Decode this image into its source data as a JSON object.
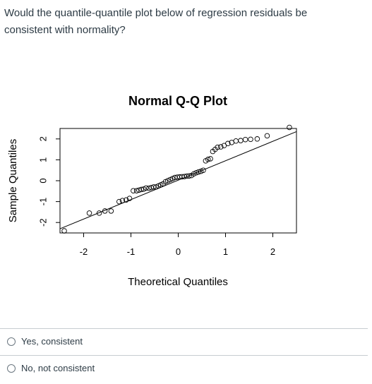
{
  "question": {
    "text": "Would the quantile-quantile plot below of regression residuals be consistent with normality?"
  },
  "chart_data": {
    "type": "scatter",
    "title": "Normal Q-Q Plot",
    "xlabel": "Theoretical Quantiles",
    "ylabel": "Sample Quantiles",
    "xlim": [
      -2.5,
      2.5
    ],
    "ylim": [
      -2.5,
      2.5
    ],
    "x_ticks": [
      -2,
      -1,
      0,
      1,
      2
    ],
    "x_tick_labels": [
      "-2",
      "-1",
      "0",
      "1",
      "2"
    ],
    "y_ticks": [
      -2,
      -1,
      0,
      1,
      2
    ],
    "y_tick_labels": [
      "-2",
      "-1",
      "0",
      "1",
      "2"
    ],
    "grid": false,
    "reference_line": {
      "x": [
        -2.5,
        2.5
      ],
      "y": [
        -2.3,
        2.35
      ]
    },
    "x": [
      -2.41,
      -1.88,
      -1.67,
      -1.55,
      -1.42,
      -1.25,
      -1.18,
      -1.1,
      -1.03,
      -0.95,
      -0.88,
      -0.83,
      -0.78,
      -0.73,
      -0.68,
      -0.62,
      -0.57,
      -0.52,
      -0.47,
      -0.42,
      -0.37,
      -0.32,
      -0.27,
      -0.22,
      -0.17,
      -0.12,
      -0.07,
      -0.02,
      0.03,
      0.08,
      0.13,
      0.18,
      0.23,
      0.28,
      0.33,
      0.38,
      0.43,
      0.48,
      0.53,
      0.58,
      0.63,
      0.68,
      0.73,
      0.78,
      0.83,
      0.9,
      0.97,
      1.05,
      1.13,
      1.22,
      1.32,
      1.42,
      1.53,
      1.67,
      1.88,
      2.35
    ],
    "y": [
      -2.4,
      -1.55,
      -1.55,
      -1.45,
      -1.45,
      -1.0,
      -0.95,
      -0.92,
      -0.85,
      -0.48,
      -0.48,
      -0.45,
      -0.42,
      -0.4,
      -0.35,
      -0.36,
      -0.33,
      -0.3,
      -0.3,
      -0.25,
      -0.2,
      -0.15,
      -0.05,
      0.0,
      0.05,
      0.1,
      0.15,
      0.17,
      0.18,
      0.19,
      0.2,
      0.22,
      0.23,
      0.25,
      0.33,
      0.38,
      0.42,
      0.45,
      0.5,
      0.95,
      1.02,
      1.05,
      1.4,
      1.5,
      1.6,
      1.62,
      1.68,
      1.78,
      1.83,
      1.9,
      1.92,
      1.97,
      1.98,
      2.0,
      2.15,
      2.55
    ]
  },
  "options": [
    {
      "label": "Yes, consistent"
    },
    {
      "label": "No, not consistent"
    }
  ]
}
